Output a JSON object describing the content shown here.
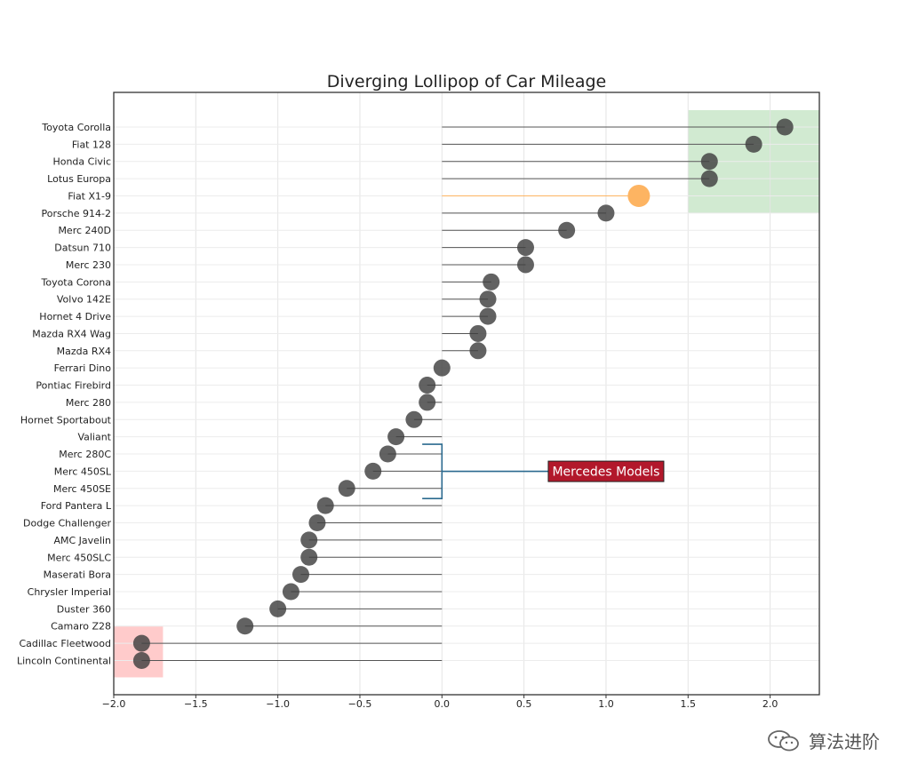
{
  "chart_data": {
    "type": "lollipop",
    "title": "Diverging Lollipop of Car Mileage",
    "xlim": [
      -2.0,
      2.3
    ],
    "xticks": [
      -2.0,
      -1.5,
      -1.0,
      -0.5,
      0.0,
      0.5,
      1.0,
      1.5,
      2.0
    ],
    "xtick_labels": [
      "−2.0",
      "−1.5",
      "−1.0",
      "−0.5",
      "0.0",
      "0.5",
      "1.0",
      "1.5",
      "2.0"
    ],
    "grid": true,
    "categories": [
      "Toyota Corolla",
      "Fiat 128",
      "Honda Civic",
      "Lotus Europa",
      "Fiat X1-9",
      "Porsche 914-2",
      "Merc 240D",
      "Datsun 710",
      "Merc 230",
      "Toyota Corona",
      "Volvo 142E",
      "Hornet 4 Drive",
      "Mazda RX4 Wag",
      "Mazda RX4",
      "Ferrari Dino",
      "Pontiac Firebird",
      "Merc 280",
      "Hornet Sportabout",
      "Valiant",
      "Merc 280C",
      "Merc 450SL",
      "Merc 450SE",
      "Ford Pantera L",
      "Dodge Challenger",
      "AMC Javelin",
      "Merc 450SLC",
      "Maserati Bora",
      "Chrysler Imperial",
      "Duster 360",
      "Camaro Z28",
      "Cadillac Fleetwood",
      "Lincoln Continental"
    ],
    "values": [
      2.09,
      1.9,
      1.63,
      1.63,
      1.2,
      1.0,
      0.76,
      0.51,
      0.51,
      0.3,
      0.28,
      0.28,
      0.22,
      0.22,
      0.0,
      -0.09,
      -0.09,
      -0.17,
      -0.28,
      -0.33,
      -0.42,
      -0.58,
      -0.71,
      -0.76,
      -0.81,
      -0.81,
      -0.86,
      -0.92,
      -1.0,
      -1.2,
      -1.83,
      -1.83
    ],
    "highlight": {
      "category": "Fiat X1-9",
      "color": "#fdb462"
    },
    "colors": {
      "dot": "#3f3f3f",
      "stem": "#555555",
      "positive_region": "#2ca02c",
      "negative_region": "#ff3030",
      "bracket": "#2b6a8f",
      "annotation_bg": "#b2182b",
      "annotation_border": "#222222",
      "annotation_text": "#ffffff"
    },
    "regions": [
      {
        "x": [
          1.5,
          2.3
        ],
        "rows": [
          0,
          4
        ],
        "color": "green"
      },
      {
        "x": [
          -2.0,
          -1.7
        ],
        "rows": [
          30,
          31
        ],
        "color": "red"
      }
    ],
    "annotation": {
      "text": "Mercedes Models",
      "bracket_x": 0.0,
      "bracket_from_x": -0.12,
      "bracket_rows": [
        19,
        22
      ],
      "label_x": 1.0
    }
  },
  "watermark": {
    "text": "算法进阶",
    "icon": "wechat-icon"
  }
}
